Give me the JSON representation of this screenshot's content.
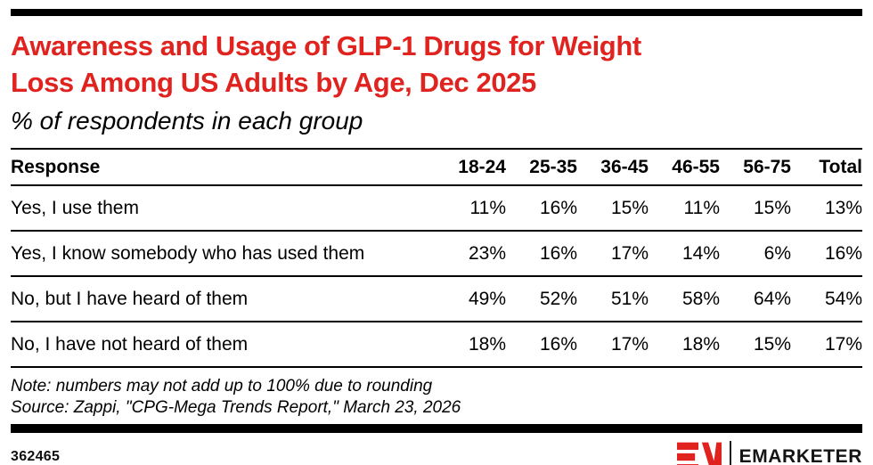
{
  "title_line1": "Awareness and Usage of GLP-1 Drugs for Weight",
  "title_line2": "Loss Among US Adults by Age, Dec 2025",
  "subtitle": "% of respondents in each group",
  "table": {
    "response_header": "Response",
    "columns": [
      "18-24",
      "25-35",
      "36-45",
      "46-55",
      "56-75",
      "Total"
    ],
    "rows": [
      {
        "label": "Yes, I use them",
        "values": [
          "11%",
          "16%",
          "15%",
          "11%",
          "15%",
          "13%"
        ]
      },
      {
        "label": "Yes, I know somebody who has used them",
        "values": [
          "23%",
          "16%",
          "17%",
          "14%",
          "6%",
          "16%"
        ]
      },
      {
        "label": "No, but I have heard of them",
        "values": [
          "49%",
          "52%",
          "51%",
          "58%",
          "64%",
          "54%"
        ]
      },
      {
        "label": "No, I have not heard of them",
        "values": [
          "18%",
          "16%",
          "17%",
          "18%",
          "15%",
          "17%"
        ]
      }
    ]
  },
  "note": "Note: numbers may not add up to 100% due to rounding",
  "source": "Source: Zappi, \"CPG-Mega Trends Report,\" March 23, 2026",
  "footer": {
    "chart_id": "362465",
    "brand": "EMARKETER"
  },
  "colors": {
    "accent_red": "#e0231f",
    "rule_black": "#000000",
    "text_black": "#0f0f0f"
  },
  "chart_data": {
    "type": "table",
    "title": "Awareness and Usage of GLP-1 Drugs for Weight Loss Among US Adults by Age, Dec 2025",
    "subtitle": "% of respondents in each group",
    "categories": [
      "18-24",
      "25-35",
      "36-45",
      "46-55",
      "56-75",
      "Total"
    ],
    "series": [
      {
        "name": "Yes, I use them",
        "values": [
          11,
          16,
          15,
          11,
          15,
          13
        ]
      },
      {
        "name": "Yes, I know somebody who has used them",
        "values": [
          23,
          16,
          17,
          14,
          6,
          16
        ]
      },
      {
        "name": "No, but I have heard of them",
        "values": [
          49,
          52,
          51,
          58,
          64,
          54
        ]
      },
      {
        "name": "No, I have not heard of them",
        "values": [
          18,
          16,
          17,
          18,
          15,
          17
        ]
      }
    ],
    "unit": "%",
    "note": "Note: numbers may not add up to 100% due to rounding",
    "source": "Source: Zappi, \"CPG-Mega Trends Report,\" March 23, 2026"
  }
}
